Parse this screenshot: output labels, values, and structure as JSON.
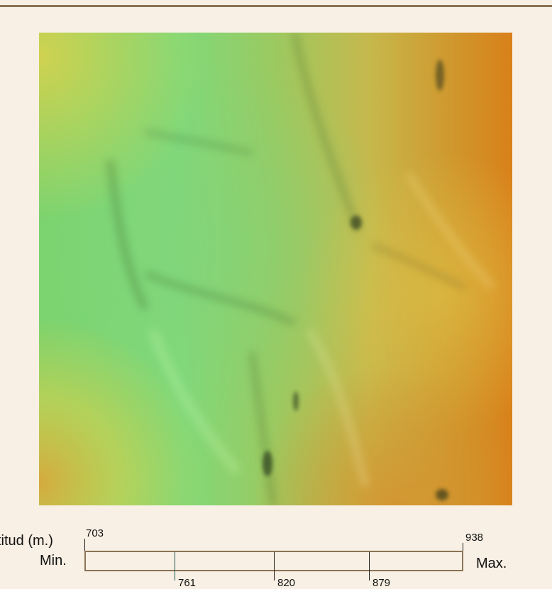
{
  "map": {
    "description_colors": {
      "low": "#7fdd7a",
      "mid": "#c8c84a",
      "high": "#d98a1a"
    }
  },
  "legend": {
    "title": "titud (m.)",
    "min_label": "Min.",
    "max_label": "Max.",
    "scale_min": "703",
    "scale_max": "938",
    "ticks": [
      "761",
      "820",
      "879"
    ],
    "border_color": "#8b7355"
  }
}
